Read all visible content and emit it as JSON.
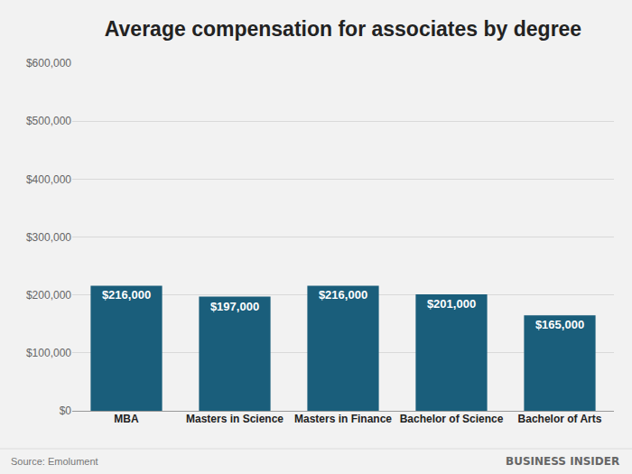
{
  "chart_data": {
    "type": "bar",
    "title": "Average compensation for associates by degree",
    "categories": [
      "MBA",
      "Masters in Science",
      "Masters in Finance",
      "Bachelor of Science",
      "Bachelor of Arts"
    ],
    "values": [
      216000,
      197000,
      216000,
      201000,
      165000
    ],
    "value_labels": [
      "$216,000",
      "$197,000",
      "$216,000",
      "$201,000",
      "$165,000"
    ],
    "color": "#1a5e7b",
    "ylim": [
      0,
      600000
    ],
    "yticks": [
      {
        "value": 0,
        "label": "$0"
      },
      {
        "value": 100000,
        "label": "$100,000"
      },
      {
        "value": 200000,
        "label": "$200,000"
      },
      {
        "value": 300000,
        "label": "$300,000"
      },
      {
        "value": 400000,
        "label": "$400,000"
      },
      {
        "value": 500000,
        "label": "$500,000"
      },
      {
        "value": 600000,
        "label": "$600,000"
      }
    ],
    "grid": true,
    "data_labels": true,
    "source": "Source: Emolument",
    "credit": "BUSINESS INSIDER"
  }
}
